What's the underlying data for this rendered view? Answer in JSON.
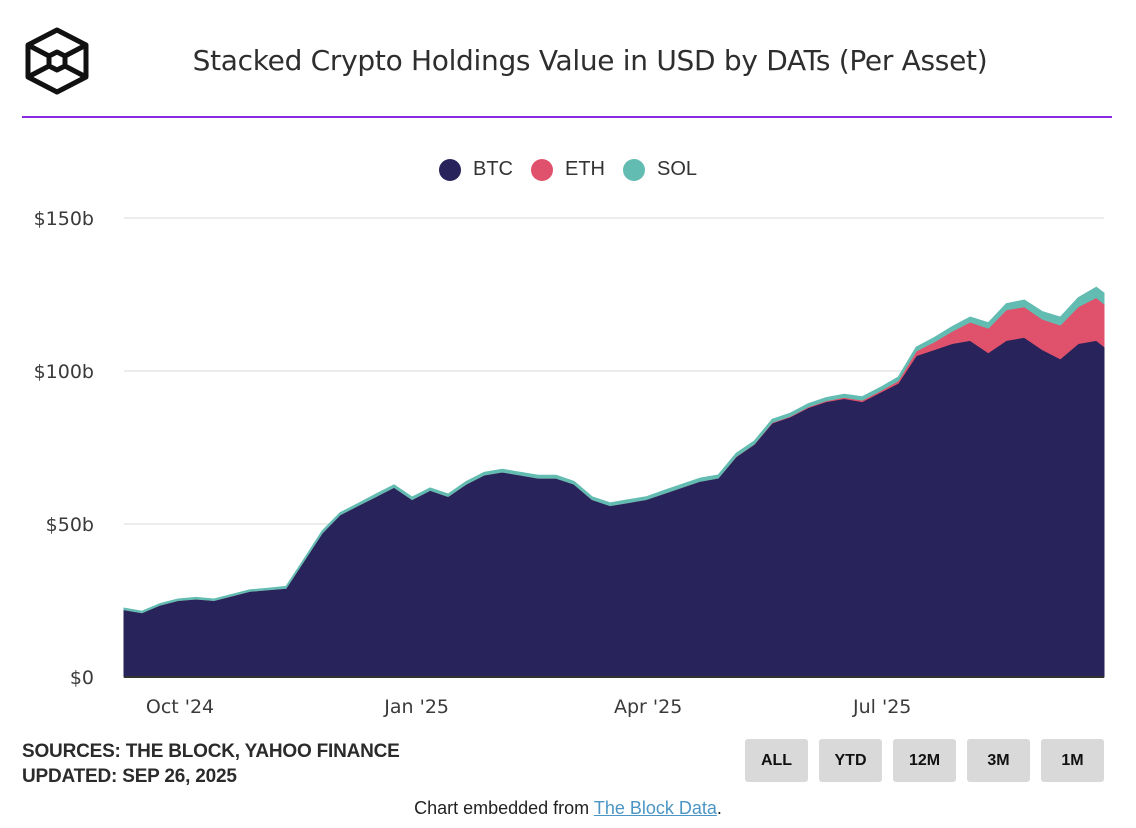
{
  "header": {
    "title": "Stacked Crypto Holdings Value in USD by DATs (Per Asset)",
    "logo_icon": "the-block-cube-logo-icon",
    "accent_color": "#8a2be2"
  },
  "legend": [
    {
      "label": "BTC",
      "color": "#28235a"
    },
    {
      "label": "ETH",
      "color": "#e0526b"
    },
    {
      "label": "SOL",
      "color": "#62bcb2"
    }
  ],
  "footer": {
    "sources": "SOURCES: THE BLOCK, YAHOO FINANCE",
    "updated": "UPDATED: SEP 26, 2025",
    "range_buttons": [
      "ALL",
      "YTD",
      "12M",
      "3M",
      "1M"
    ],
    "embed_prefix": "Chart embedded from ",
    "embed_link": "The Block Data",
    "embed_suffix": "."
  },
  "chart_data": {
    "type": "area",
    "stacked": true,
    "title": "Stacked Crypto Holdings Value in USD by DATs (Per Asset)",
    "xlabel": "",
    "ylabel": "",
    "x_range": [
      "2024-09-10",
      "2025-09-26"
    ],
    "ylim": [
      0,
      150
    ],
    "y_unit": "USD billions",
    "y_ticks": [
      {
        "value": 0,
        "label": "$0"
      },
      {
        "value": 50,
        "label": "$50b"
      },
      {
        "value": 100,
        "label": "$100b"
      },
      {
        "value": 150,
        "label": "$150b"
      }
    ],
    "x_ticks": [
      {
        "date": "2024-10-01",
        "label": "Oct '24"
      },
      {
        "date": "2025-01-01",
        "label": "Jan '25"
      },
      {
        "date": "2025-04-01",
        "label": "Apr '25"
      },
      {
        "date": "2025-07-01",
        "label": "Jul '25"
      }
    ],
    "grid": "horizontal",
    "legend_position": "top-center",
    "x": [
      "2024-09-10",
      "2024-09-17",
      "2024-09-24",
      "2024-10-01",
      "2024-10-08",
      "2024-10-15",
      "2024-10-22",
      "2024-10-29",
      "2024-11-05",
      "2024-11-12",
      "2024-11-19",
      "2024-11-26",
      "2024-12-03",
      "2024-12-10",
      "2024-12-17",
      "2024-12-24",
      "2024-12-31",
      "2025-01-07",
      "2025-01-14",
      "2025-01-21",
      "2025-01-28",
      "2025-02-04",
      "2025-02-11",
      "2025-02-18",
      "2025-02-25",
      "2025-03-04",
      "2025-03-11",
      "2025-03-18",
      "2025-03-25",
      "2025-04-01",
      "2025-04-08",
      "2025-04-15",
      "2025-04-22",
      "2025-04-29",
      "2025-05-06",
      "2025-05-13",
      "2025-05-20",
      "2025-05-27",
      "2025-06-03",
      "2025-06-10",
      "2025-06-17",
      "2025-06-24",
      "2025-07-01",
      "2025-07-08",
      "2025-07-15",
      "2025-07-22",
      "2025-07-29",
      "2025-08-05",
      "2025-08-12",
      "2025-08-19",
      "2025-08-26",
      "2025-09-02",
      "2025-09-09",
      "2025-09-16",
      "2025-09-23",
      "2025-09-26"
    ],
    "series": [
      {
        "name": "BTC",
        "color": "#28235a",
        "values": [
          22,
          21,
          23.5,
          25,
          25.5,
          25,
          26.5,
          28,
          28.5,
          29,
          38,
          47,
          53,
          56,
          59,
          62,
          58,
          61,
          59,
          63,
          66,
          67,
          66,
          65,
          65,
          63,
          58,
          56,
          57,
          58,
          60,
          62,
          64,
          65,
          72,
          76,
          83,
          85,
          88,
          90,
          91,
          90,
          93,
          96,
          105,
          107,
          109,
          110,
          106,
          110,
          111,
          107,
          104,
          109,
          110,
          108
        ]
      },
      {
        "name": "ETH",
        "color": "#e0526b",
        "values": [
          0,
          0,
          0,
          0,
          0,
          0,
          0,
          0,
          0,
          0,
          0,
          0,
          0,
          0,
          0,
          0,
          0,
          0,
          0,
          0,
          0,
          0,
          0,
          0,
          0,
          0,
          0,
          0,
          0,
          0,
          0,
          0,
          0,
          0,
          0.1,
          0.1,
          0.2,
          0.2,
          0.3,
          0.3,
          0.4,
          0.5,
          0.5,
          0.8,
          1.5,
          2.5,
          4,
          6,
          8,
          10,
          10,
          10,
          11,
          12,
          14,
          14
        ]
      },
      {
        "name": "SOL",
        "color": "#62bcb2",
        "values": [
          0.5,
          0.5,
          0.5,
          0.5,
          0.5,
          0.5,
          0.5,
          0.5,
          0.5,
          0.6,
          0.6,
          0.7,
          0.7,
          0.7,
          0.8,
          0.8,
          0.8,
          0.8,
          0.8,
          0.9,
          0.9,
          0.9,
          0.9,
          0.9,
          0.9,
          0.9,
          0.9,
          0.9,
          0.9,
          0.9,
          1,
          1,
          1,
          1,
          1,
          1,
          1,
          1,
          1,
          1,
          1,
          1.1,
          1.1,
          1.2,
          1.3,
          1.4,
          1.5,
          1.6,
          1.8,
          2,
          2.2,
          2.4,
          2.6,
          3,
          3.4,
          3.5
        ]
      }
    ]
  }
}
